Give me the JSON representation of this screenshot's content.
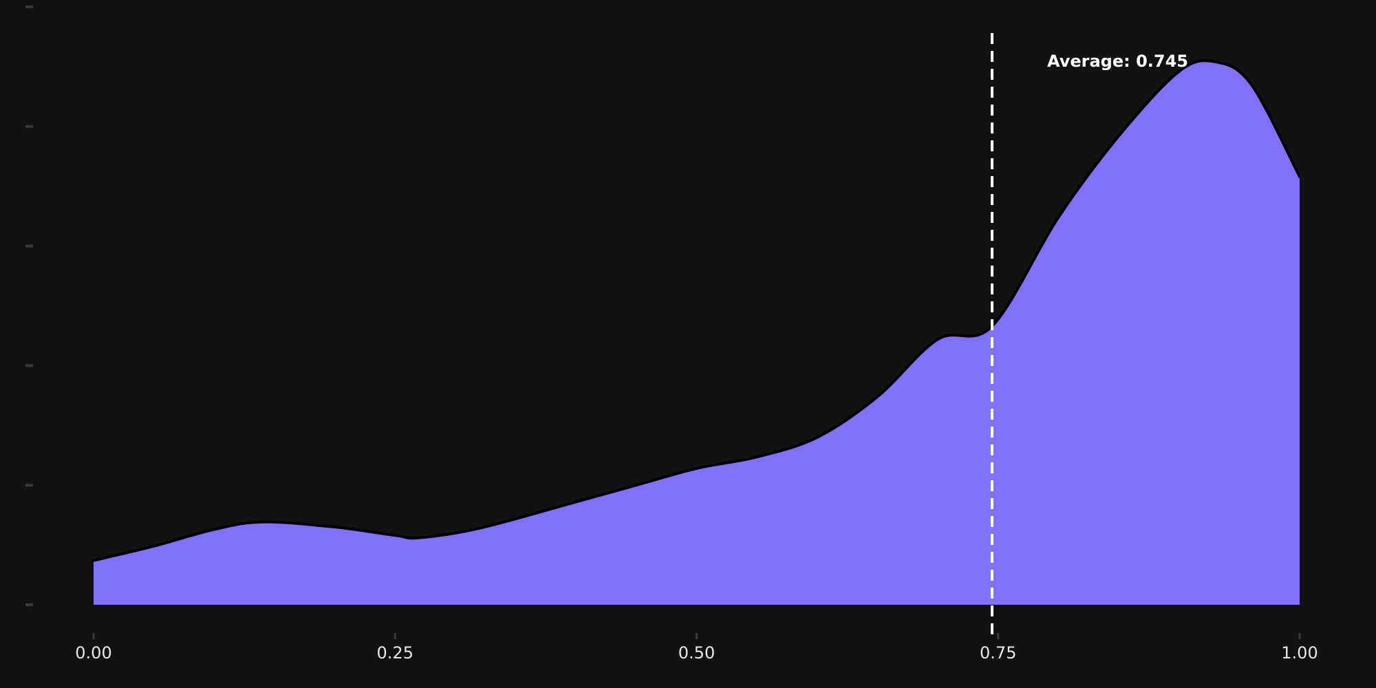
{
  "chart_data": {
    "type": "area",
    "title": "",
    "xlabel": "",
    "ylabel": "",
    "xlim": [
      0,
      1
    ],
    "ylim": [
      0,
      2.5
    ],
    "x_ticks": [
      "0.00",
      "0.25",
      "0.50",
      "0.75",
      "1.00"
    ],
    "y_tick_count": 6,
    "y_tick_labels_visible": false,
    "grid": false,
    "legend": "none",
    "series": [
      {
        "x": [
          0.0,
          0.05,
          0.1,
          0.14,
          0.2,
          0.25,
          0.27,
          0.32,
          0.4,
          0.45,
          0.5,
          0.55,
          0.6,
          0.65,
          0.7,
          0.745,
          0.8,
          0.85,
          0.9,
          0.93,
          0.96,
          1.0
        ],
        "y": [
          0.185,
          0.245,
          0.315,
          0.346,
          0.325,
          0.29,
          0.28,
          0.32,
          0.43,
          0.5,
          0.57,
          0.618,
          0.7,
          0.87,
          1.11,
          1.165,
          1.62,
          1.96,
          2.23,
          2.27,
          2.175,
          1.79
        ]
      }
    ],
    "average": {
      "value": 0.745,
      "label": "Average: 0.745"
    },
    "colors": {
      "background": "#121212",
      "fill": "#8070fa",
      "outline": "#000000",
      "average_line": "#ffffff",
      "tick_mark": "#3a3a3a",
      "tick_label": "#e8e8e8"
    }
  }
}
